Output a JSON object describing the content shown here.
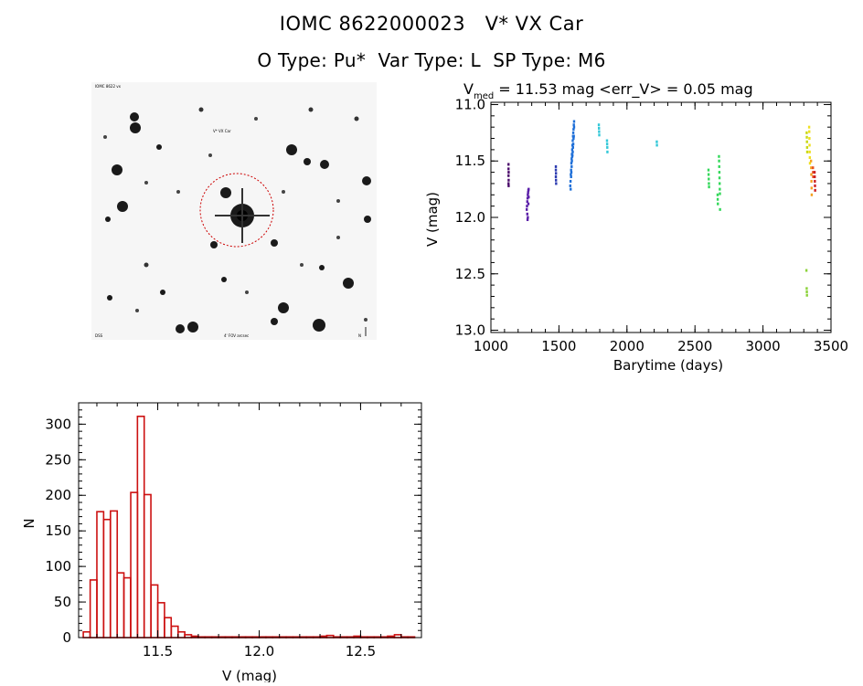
{
  "header": {
    "line1": "IOMC 8622000023   V* VX Car",
    "line2": "O Type: Pu*  Var Type: L  SP Type: M6"
  },
  "sky_image": {
    "label_top_left": "IOMC 8622 vx",
    "label_center": "V* VX Car",
    "label_bottom_left": "DSS",
    "label_bottom_center": "4' FOV arcsec",
    "label_bottom_right": "N",
    "colors": {
      "circle": "#cc0000",
      "label": "#2222cc",
      "star": "#1a1a1a"
    }
  },
  "chart_data": [
    {
      "type": "scatter",
      "title_lhs": "V",
      "title_sub": "med",
      "title_rhs": " = 11.53 mag <err_V> = 0.05 mag",
      "xlabel": "Barytime (days)",
      "ylabel": "V (mag)",
      "xlim": [
        1000,
        3500
      ],
      "ylim": [
        13.02,
        10.98
      ],
      "x_ticks": [
        1000,
        1500,
        2000,
        2500,
        3000,
        3500
      ],
      "y_ticks": [
        11.0,
        11.5,
        12.0,
        12.5,
        13.0
      ],
      "y_tick_labels": [
        "11.0",
        "11.5",
        "12.0",
        "12.5",
        "13.0"
      ],
      "series": [
        {
          "name": "s1",
          "color": "#4b0c6b",
          "points": [
            [
              1128,
              11.53
            ],
            [
              1128,
              11.57
            ],
            [
              1129,
              11.6
            ],
            [
              1128,
              11.63
            ],
            [
              1129,
              11.67
            ],
            [
              1128,
              11.7
            ],
            [
              1129,
              11.72
            ]
          ]
        },
        {
          "name": "s2",
          "color": "#5a1ea8",
          "points": [
            [
              1262,
              11.93
            ],
            [
              1264,
              11.9
            ],
            [
              1266,
              11.86
            ],
            [
              1268,
              11.83
            ],
            [
              1270,
              11.8
            ],
            [
              1272,
              11.78
            ],
            [
              1274,
              11.76
            ],
            [
              1276,
              11.75
            ],
            [
              1266,
              11.97
            ],
            [
              1268,
              12.02
            ],
            [
              1270,
              12.0
            ],
            [
              1274,
              11.88
            ],
            [
              1276,
              11.82
            ]
          ]
        },
        {
          "name": "s3",
          "color": "#2c3bb0",
          "points": [
            [
              1476,
              11.55
            ],
            [
              1476,
              11.58
            ],
            [
              1477,
              11.61
            ],
            [
              1476,
              11.64
            ],
            [
              1477,
              11.67
            ],
            [
              1478,
              11.7
            ]
          ]
        },
        {
          "name": "s4",
          "color": "#1e6fd8",
          "points": [
            [
              1582,
              11.72
            ],
            [
              1584,
              11.68
            ],
            [
              1586,
              11.62
            ],
            [
              1588,
              11.58
            ],
            [
              1590,
              11.52
            ],
            [
              1592,
              11.48
            ],
            [
              1594,
              11.44
            ],
            [
              1596,
              11.4
            ],
            [
              1598,
              11.36
            ],
            [
              1600,
              11.32
            ],
            [
              1602,
              11.28
            ],
            [
              1604,
              11.25
            ],
            [
              1606,
              11.22
            ],
            [
              1608,
              11.18
            ],
            [
              1610,
              11.15
            ],
            [
              1585,
              11.75
            ],
            [
              1588,
              11.64
            ],
            [
              1592,
              11.55
            ],
            [
              1596,
              11.46
            ],
            [
              1600,
              11.42
            ],
            [
              1604,
              11.35
            ],
            [
              1608,
              11.28
            ],
            [
              1590,
              11.6
            ],
            [
              1594,
              11.5
            ],
            [
              1598,
              11.45
            ],
            [
              1602,
              11.38
            ],
            [
              1606,
              11.3
            ],
            [
              1610,
              11.2
            ]
          ]
        },
        {
          "name": "s5",
          "color": "#33c8d8",
          "points": [
            [
              1792,
              11.18
            ],
            [
              1793,
              11.21
            ],
            [
              1794,
              11.24
            ],
            [
              1795,
              11.27
            ],
            [
              1852,
              11.32
            ],
            [
              1853,
              11.35
            ],
            [
              1854,
              11.38
            ],
            [
              1855,
              11.42
            ],
            [
              2218,
              11.33
            ],
            [
              2219,
              11.36
            ]
          ]
        },
        {
          "name": "s6",
          "color": "#33d85a",
          "points": [
            [
              2598,
              11.58
            ],
            [
              2599,
              11.62
            ],
            [
              2600,
              11.66
            ],
            [
              2601,
              11.7
            ],
            [
              2602,
              11.73
            ],
            [
              2665,
              11.8
            ],
            [
              2666,
              11.84
            ],
            [
              2667,
              11.88
            ],
            [
              2675,
              11.46
            ],
            [
              2676,
              11.5
            ],
            [
              2677,
              11.55
            ],
            [
              2678,
              11.6
            ],
            [
              2679,
              11.65
            ],
            [
              2680,
              11.7
            ],
            [
              2681,
              11.75
            ],
            [
              2682,
              11.79
            ],
            [
              2683,
              11.93
            ]
          ]
        },
        {
          "name": "s7",
          "color": "#8cd23a",
          "points": [
            [
              3318,
              12.47
            ],
            [
              3320,
              12.63
            ],
            [
              3321,
              12.66
            ],
            [
              3322,
              12.69
            ]
          ]
        },
        {
          "name": "s8",
          "color": "#c8d810",
          "points": [
            [
              3320,
              11.25
            ],
            [
              3321,
              11.29
            ],
            [
              3322,
              11.33
            ],
            [
              3323,
              11.38
            ],
            [
              3324,
              11.42
            ]
          ]
        },
        {
          "name": "s9",
          "color": "#f0e020",
          "points": [
            [
              3338,
              11.2
            ],
            [
              3339,
              11.24
            ],
            [
              3340,
              11.3
            ],
            [
              3341,
              11.36
            ],
            [
              3342,
              11.42
            ],
            [
              3343,
              11.47
            ],
            [
              3344,
              11.52
            ]
          ]
        },
        {
          "name": "s10",
          "color": "#f5a020",
          "points": [
            [
              3352,
              11.5
            ],
            [
              3353,
              11.56
            ],
            [
              3354,
              11.62
            ],
            [
              3355,
              11.68
            ],
            [
              3356,
              11.74
            ],
            [
              3357,
              11.8
            ]
          ]
        },
        {
          "name": "s11",
          "color": "#e85020",
          "points": [
            [
              3366,
              11.56
            ],
            [
              3367,
              11.6
            ],
            [
              3368,
              11.64
            ]
          ]
        },
        {
          "name": "s12",
          "color": "#cc2020",
          "points": [
            [
              3378,
              11.6
            ],
            [
              3379,
              11.64
            ],
            [
              3380,
              11.68
            ],
            [
              3381,
              11.72
            ],
            [
              3382,
              11.76
            ]
          ]
        }
      ]
    },
    {
      "type": "bar",
      "title": "",
      "xlabel": "V (mag)",
      "ylabel": "N",
      "bar_color": "#cc1111",
      "bin_width": 0.0333,
      "bin_starts": [
        11.133,
        11.167,
        11.2,
        11.233,
        11.267,
        11.3,
        11.333,
        11.367,
        11.4,
        11.433,
        11.467,
        11.5,
        11.533,
        11.567,
        11.6,
        11.633,
        11.667,
        11.7,
        11.733,
        11.767,
        11.8,
        11.833,
        11.867,
        11.9,
        11.933,
        11.967,
        12.0,
        12.033,
        12.067,
        12.1,
        12.133,
        12.167,
        12.2,
        12.233,
        12.267,
        12.3,
        12.333,
        12.367,
        12.4,
        12.433,
        12.467,
        12.5,
        12.533,
        12.567,
        12.6,
        12.633,
        12.667,
        12.7,
        12.733
      ],
      "values": [
        8,
        81,
        177,
        166,
        178,
        91,
        84,
        204,
        311,
        201,
        74,
        49,
        28,
        16,
        8,
        4,
        2,
        1,
        1,
        1,
        1,
        1,
        1,
        1,
        1,
        1,
        1,
        1,
        1,
        1,
        1,
        1,
        1,
        1,
        1,
        2,
        3,
        1,
        1,
        1,
        2,
        1,
        1,
        1,
        1,
        2,
        4,
        1,
        1
      ],
      "xlim": [
        11.11,
        12.8
      ],
      "ylim": [
        0,
        330
      ],
      "x_ticks": [
        11.5,
        12.0,
        12.5
      ],
      "x_tick_labels": [
        "11.5",
        "12.0",
        "12.5"
      ],
      "y_ticks": [
        0,
        50,
        100,
        150,
        200,
        250,
        300
      ],
      "y_tick_labels": [
        "0",
        "50",
        "100",
        "150",
        "200",
        "250",
        "300"
      ]
    }
  ]
}
